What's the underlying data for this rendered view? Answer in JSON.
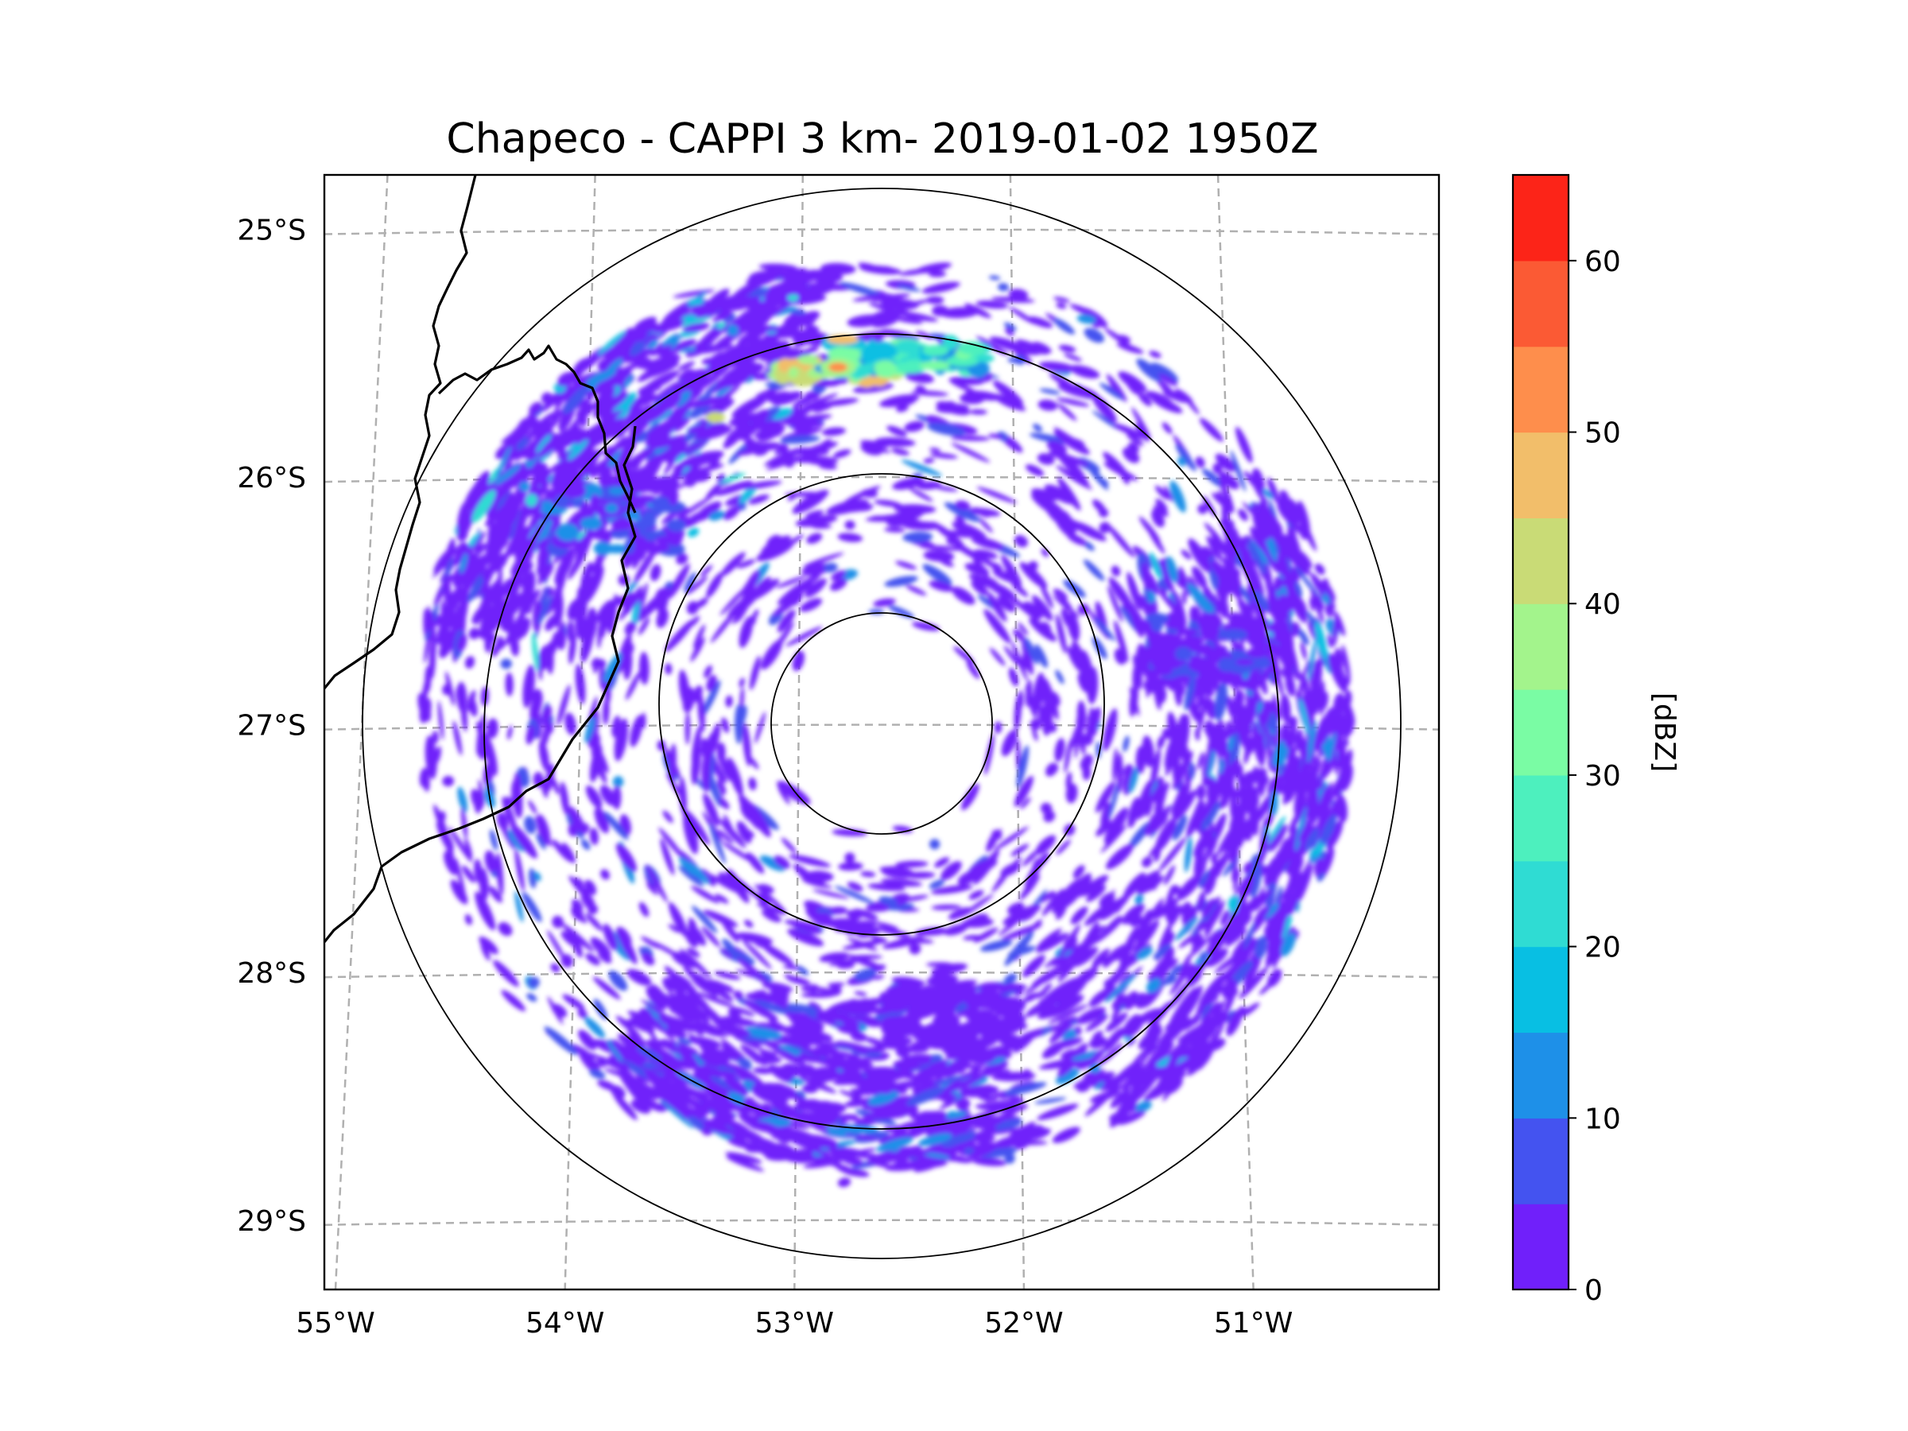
{
  "chart_data": {
    "type": "heatmap",
    "subtype": "radar_cappi_map",
    "title": "Chapeco - CAPPI 3 km- 2019-01-02 1950Z",
    "radar_site": "Chapeco",
    "product": "CAPPI 3 km",
    "datetime": "2019-01-02 1950Z",
    "lon_ticks": [
      "55°W",
      "54°W",
      "53°W",
      "52°W",
      "51°W"
    ],
    "lat_ticks": [
      "25°S",
      "26°S",
      "27°S",
      "28°S",
      "29°S"
    ],
    "lon_values": [
      -55,
      -54,
      -53,
      -52,
      -51
    ],
    "lat_values": [
      -25,
      -26,
      -27,
      -28,
      -29
    ],
    "extent": {
      "lon_min": -55.17,
      "lon_max": -50.07,
      "lat_min": -29.28,
      "lat_max": -24.78
    },
    "range_rings_deg": [
      0.45,
      0.9,
      1.8,
      2.25
    ],
    "colorbar": {
      "label": "[dBZ]",
      "min": 0,
      "max": 65,
      "step": 5,
      "ticks": [
        "0",
        "10",
        "20",
        "30",
        "40",
        "50",
        "60"
      ],
      "colors": [
        "#7020fa",
        "#4453f0",
        "#1e90e8",
        "#08bfe3",
        "#2fdcd3",
        "#4df0be",
        "#7afca4",
        "#a3f48c",
        "#c9db76",
        "#f2be6a",
        "#fe8e4c",
        "#fb5a34",
        "#fc2418"
      ]
    },
    "echo_regions": [
      {
        "name": "north-strong-cell",
        "lon": -52.81,
        "lat": -25.56,
        "dbz": 50
      },
      {
        "name": "north-line",
        "lon": -52.45,
        "lat": -25.52,
        "dbz": 30
      },
      {
        "name": "northwest-band",
        "lon": -53.85,
        "lat": -26.15,
        "dbz": 15
      },
      {
        "name": "east-band",
        "lon": -51.1,
        "lat": -26.7,
        "dbz": 10
      },
      {
        "name": "south-band",
        "lon": -52.3,
        "lat": -28.2,
        "dbz": 5
      }
    ]
  }
}
